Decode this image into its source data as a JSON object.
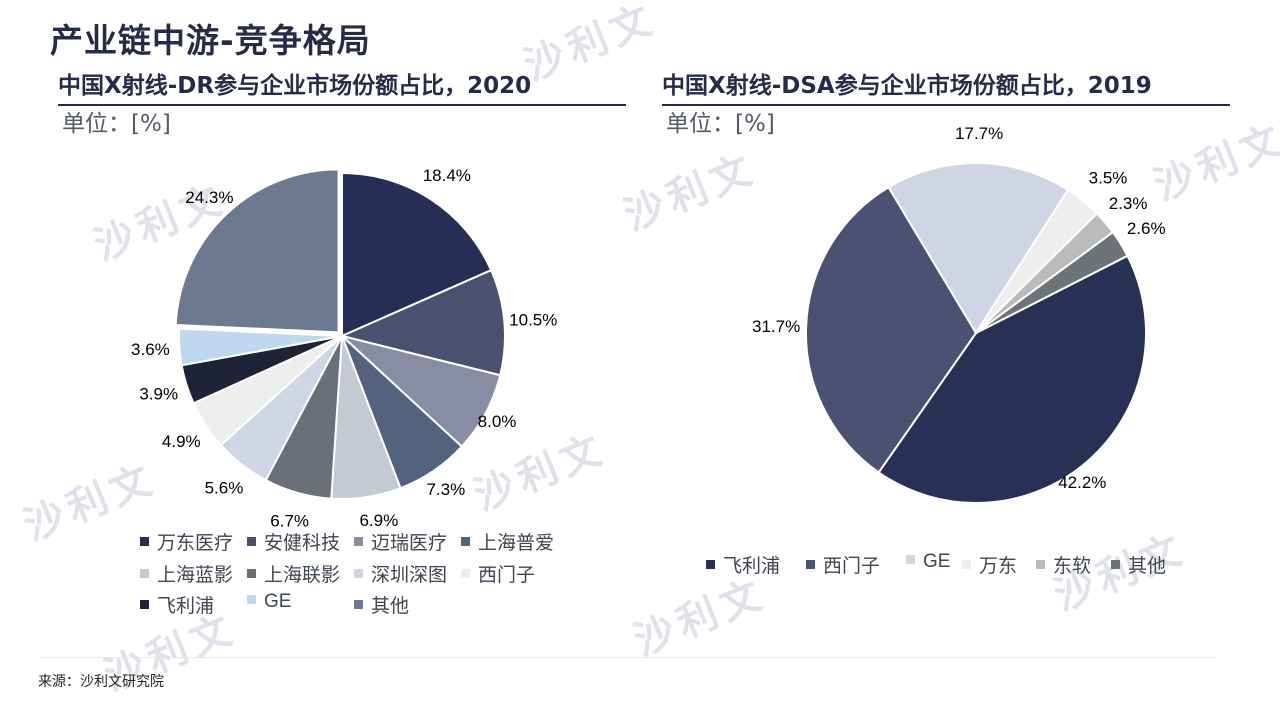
{
  "main_title": "产业链中游-竞争格局",
  "source": "来源：沙利文研究院",
  "watermark": "沙利文",
  "chart_data": [
    {
      "type": "pie",
      "title": "中国X射线-DR参与企业市场份额占比，2020",
      "unit_label": "单位：[%]",
      "categories": [
        "万东医疗",
        "安健科技",
        "迈瑞医疗",
        "上海普爱",
        "上海蓝影",
        "上海联影",
        "深圳深图",
        "西门子",
        "飞利浦",
        "GE",
        "其他"
      ],
      "values": [
        18.4,
        10.5,
        8.0,
        7.3,
        6.9,
        6.7,
        5.6,
        4.9,
        3.9,
        3.6,
        24.3
      ],
      "labels": [
        "18.4%",
        "10.5%",
        "8.0%",
        "7.3%",
        "6.9%",
        "6.7%",
        "5.6%",
        "4.9%",
        "3.9%",
        "3.6%",
        "24.3%"
      ],
      "colors": [
        "#262e55",
        "#4a5170",
        "#888da3",
        "#53627f",
        "#c5c9d1",
        "#6a6f78",
        "#d0d6e6",
        "#eeeeee",
        "#1f2338",
        "#c0d8ee",
        "#6b7a8e"
      ],
      "legend_placement": "bottom"
    },
    {
      "type": "pie",
      "title": "中国X射线-DSA参与企业市场份额占比，2019",
      "unit_label": "单位：[%]",
      "categories": [
        "飞利浦",
        "西门子",
        "GE",
        "万东",
        "东软",
        "其他"
      ],
      "values": [
        42.2,
        31.7,
        17.7,
        3.5,
        2.3,
        2.6
      ],
      "labels": [
        "42.2%",
        "31.7%",
        "17.7%",
        "3.5%",
        "2.3%",
        "2.6%"
      ],
      "colors": [
        "#283056",
        "#4a5172",
        "#cfd5e5",
        "#eeeeee",
        "#bbbbbb",
        "#6e7378"
      ],
      "legend_placement": "bottom"
    }
  ]
}
